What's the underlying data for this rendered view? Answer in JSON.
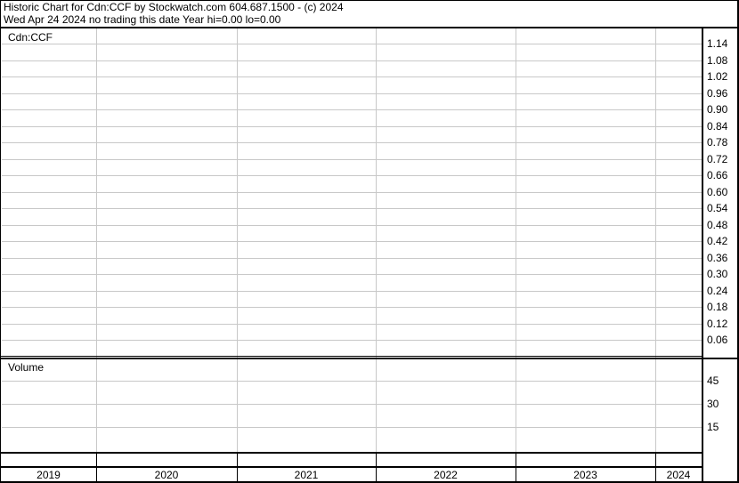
{
  "header": {
    "title": "Historic Chart for Cdn:CCF by Stockwatch.com 604.687.1500 - (c) 2024",
    "subtitle": "Wed Apr 24 2024   no trading this date  Year hi=0.00  lo=0.00"
  },
  "chart_data": {
    "type": "line",
    "panels": [
      {
        "label": "Cdn:CCF",
        "ylim": [
          0,
          1.17
        ],
        "ticks": [
          "1.14",
          "1.08",
          "1.02",
          "0.96",
          "0.90",
          "0.84",
          "0.78",
          "0.72",
          "0.66",
          "0.60",
          "0.54",
          "0.48",
          "0.42",
          "0.36",
          "0.30",
          "0.24",
          "0.18",
          "0.12",
          "0.06"
        ],
        "series": []
      },
      {
        "label": "Volume",
        "ticks": [
          "45",
          "30",
          "15"
        ],
        "series": []
      }
    ],
    "x_categories": [
      "2019",
      "2020",
      "2021",
      "2022",
      "2023",
      "2024"
    ],
    "grid": true
  }
}
